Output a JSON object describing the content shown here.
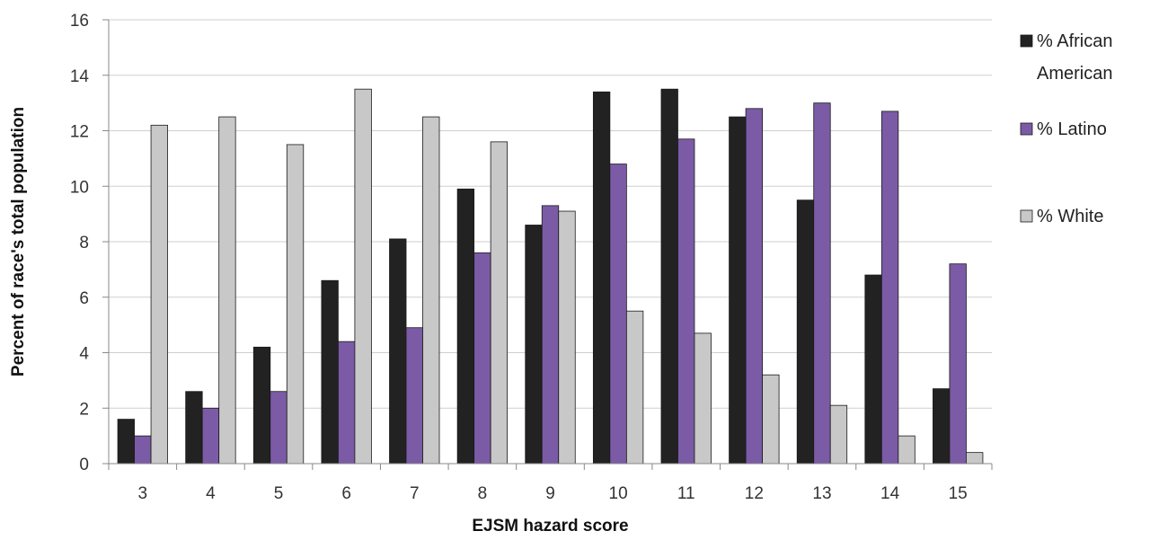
{
  "chart_data": {
    "type": "bar",
    "xlabel": "EJSM hazard score",
    "ylabel": "Percent of race's total population",
    "ylim": [
      0,
      16
    ],
    "yticks": [
      0,
      2,
      4,
      6,
      8,
      10,
      12,
      14,
      16
    ],
    "grid": true,
    "legend_position": "right",
    "categories": [
      "3",
      "4",
      "5",
      "6",
      "7",
      "8",
      "9",
      "10",
      "11",
      "12",
      "13",
      "14",
      "15"
    ],
    "series": [
      {
        "name": "% African American",
        "legend_lines": [
          "% African",
          "American"
        ],
        "color": "#222222",
        "values": [
          1.6,
          2.6,
          4.2,
          6.6,
          8.1,
          9.9,
          8.6,
          13.4,
          13.5,
          12.5,
          9.5,
          6.8,
          2.7
        ]
      },
      {
        "name": "% Latino",
        "legend_lines": [
          "% Latino"
        ],
        "color": "#7B5BA6",
        "values": [
          1.0,
          2.0,
          2.6,
          4.4,
          4.9,
          7.6,
          9.3,
          10.8,
          11.7,
          12.8,
          13.0,
          12.7,
          7.2
        ]
      },
      {
        "name": "% White",
        "legend_lines": [
          "% White"
        ],
        "color": "#C8C8C8",
        "values": [
          12.2,
          12.5,
          11.5,
          13.5,
          12.5,
          11.6,
          9.1,
          5.5,
          4.7,
          3.2,
          2.1,
          1.0,
          0.4
        ]
      }
    ]
  }
}
